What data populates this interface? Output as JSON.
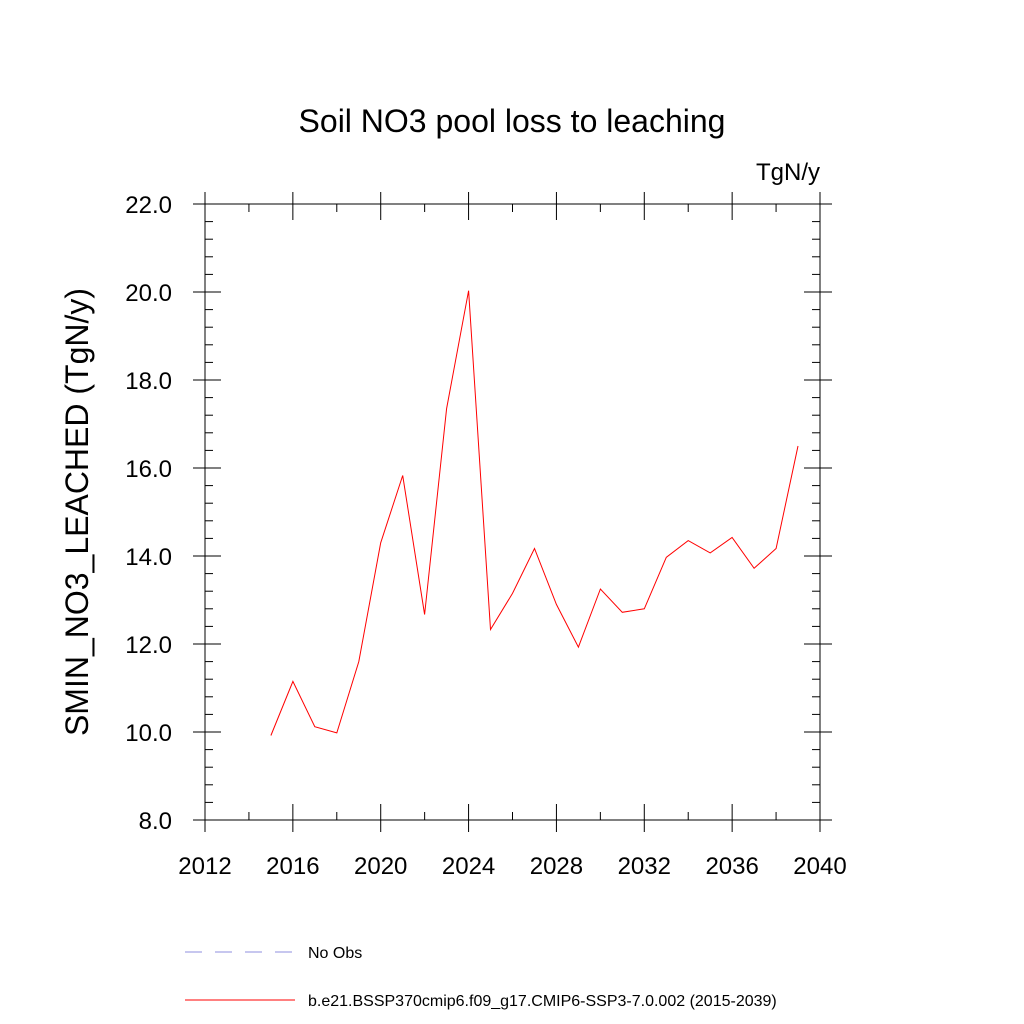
{
  "chart_data": {
    "type": "line",
    "title": "Soil NO3 pool loss to leaching",
    "units_label": "TgN/y",
    "ylabel": "SMIN_NO3_LEACHED  (TgN/y)",
    "xlabel": "",
    "xlim": [
      2012,
      2040
    ],
    "ylim": [
      8.0,
      22.0
    ],
    "x_ticks": [
      2012,
      2016,
      2020,
      2024,
      2028,
      2032,
      2036,
      2040
    ],
    "y_ticks": [
      "8.0",
      "10.0",
      "12.0",
      "14.0",
      "16.0",
      "18.0",
      "20.0",
      "22.0"
    ],
    "grid": false,
    "series": [
      {
        "name": "b.e21.BSSP370cmip6.f09_g17.CMIP6-SSP3-7.0.002 (2015-2039)",
        "color": "#ff0000",
        "style": "solid",
        "x": [
          2015,
          2016,
          2017,
          2018,
          2019,
          2020,
          2021,
          2022,
          2023,
          2024,
          2025,
          2026,
          2027,
          2028,
          2029,
          2030,
          2031,
          2032,
          2033,
          2034,
          2035,
          2036,
          2037,
          2038,
          2039
        ],
        "values": [
          9.92,
          11.15,
          10.12,
          9.98,
          11.6,
          14.3,
          15.83,
          12.67,
          17.35,
          20.03,
          12.33,
          13.15,
          14.17,
          12.9,
          11.93,
          13.25,
          12.72,
          12.8,
          13.97,
          14.35,
          14.07,
          14.42,
          13.72,
          14.17,
          16.5
        ]
      }
    ],
    "legend": [
      {
        "label": "No Obs",
        "color": "#8f8fdf",
        "style": "dashed"
      },
      {
        "label": "b.e21.BSSP370cmip6.f09_g17.CMIP6-SSP3-7.0.002 (2015-2039)",
        "color": "#ff0000",
        "style": "solid"
      }
    ]
  }
}
